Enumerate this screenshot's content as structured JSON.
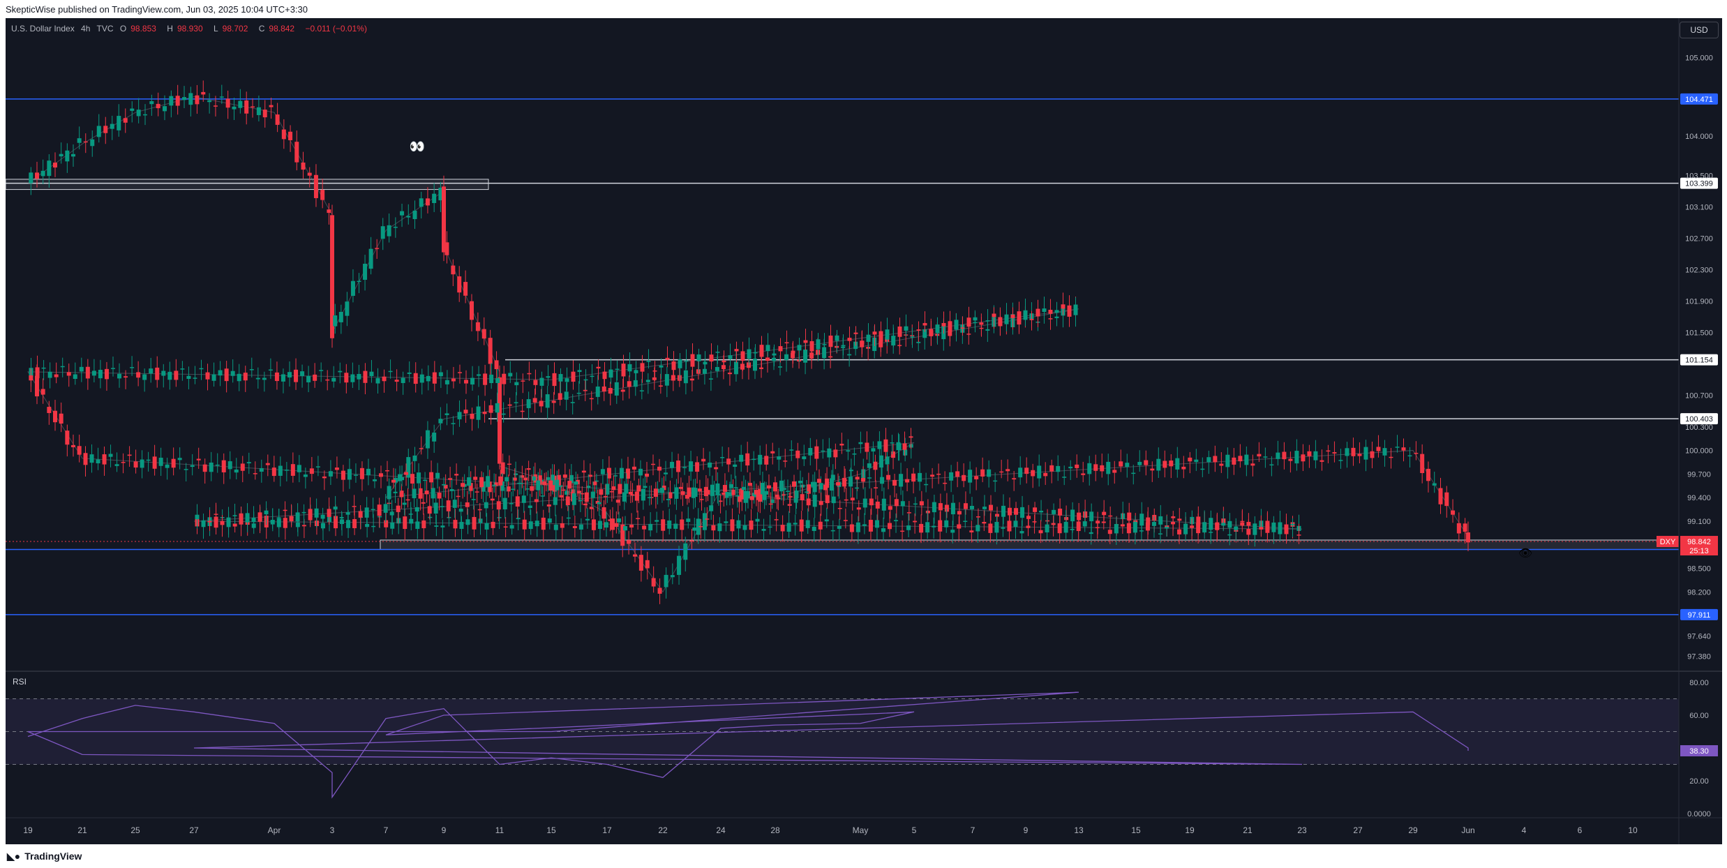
{
  "header": {
    "publisher_text": "SkepticWise published on TradingView.com, Jun 03, 2025 10:04 UTC+3:30"
  },
  "symbol_bar": {
    "name": "U.S. Dollar Index",
    "interval": "4h",
    "exchange": "TVC",
    "open_label": "O",
    "open": "98.853",
    "high_label": "H",
    "high": "98.930",
    "low_label": "L",
    "low": "98.702",
    "close_label": "C",
    "close": "98.842",
    "change": "−0.011 (−0.01%)"
  },
  "currency": "USD",
  "footer": {
    "brand": "TradingView"
  },
  "colors": {
    "background": "#131722",
    "up": "#089981",
    "down": "#f23645",
    "level_blue": "#2962ff",
    "rsi_line": "#7e57c2",
    "zone_border": "#d1d4dc"
  },
  "chart_data": {
    "type": "candlestick",
    "symbol": "DXY",
    "interval": "4h",
    "price_axis": {
      "ylim": [
        97.2,
        105.5
      ],
      "ticks": [
        "105.000",
        "104.000",
        "103.500",
        "103.100",
        "102.700",
        "102.300",
        "101.900",
        "101.500",
        "100.700",
        "100.300",
        "100.000",
        "99.700",
        "99.400",
        "99.100",
        "98.500",
        "98.200",
        "97.640",
        "97.380"
      ]
    },
    "x_axis": {
      "ticks": [
        "19",
        "21",
        "25",
        "27",
        "Apr",
        "3",
        "7",
        "9",
        "11",
        "15",
        "17",
        "22",
        "24",
        "28",
        "May",
        "5",
        "7",
        "9",
        "13",
        "15",
        "19",
        "21",
        "23",
        "27",
        "29",
        "Jun",
        "4",
        "6",
        "10"
      ]
    },
    "path_points": [
      [
        "19",
        103.4
      ],
      [
        "21",
        103.9
      ],
      [
        "25",
        104.3
      ],
      [
        "27",
        104.5
      ],
      [
        "Apr",
        104.3
      ],
      [
        "3",
        103.0
      ],
      [
        "3",
        101.5
      ],
      [
        "7",
        102.8
      ],
      [
        "9",
        103.3
      ],
      [
        "9",
        102.6
      ],
      [
        "11",
        101.0
      ],
      [
        "11",
        99.8
      ],
      [
        "15",
        99.6
      ],
      [
        "17",
        99.2
      ],
      [
        "22",
        98.2
      ],
      [
        "24",
        99.5
      ],
      [
        "28",
        99.4
      ],
      [
        "May",
        99.7
      ],
      [
        "5",
        100.1
      ],
      [
        "7",
        99.4
      ],
      [
        "9",
        100.4
      ],
      [
        "13",
        101.8
      ],
      [
        "15",
        100.9
      ],
      [
        "19",
        101.0
      ],
      [
        "21",
        99.9
      ],
      [
        "23",
        99.0
      ],
      [
        "27",
        99.1
      ],
      [
        "29",
        100.0
      ],
      [
        "Jun",
        98.9
      ],
      [
        "Jun",
        98.84
      ]
    ],
    "horizontal_levels": [
      {
        "kind": "blue",
        "label": "104.471",
        "value": 104.471
      },
      {
        "kind": "white",
        "label": "103.399",
        "value": 103.399
      },
      {
        "kind": "white",
        "label": "101.154",
        "value": 101.154
      },
      {
        "kind": "white",
        "label": "100.403",
        "value": 100.403
      },
      {
        "kind": "blue",
        "label": "98.740",
        "value": 98.74
      },
      {
        "kind": "blue",
        "label": "97.911",
        "value": 97.911
      }
    ],
    "zones": [
      {
        "low": 103.32,
        "high": 103.45
      },
      {
        "low": 98.74,
        "high": 98.86
      }
    ],
    "last_price": {
      "symbol": "DXY",
      "value": "98.842",
      "countdown": "25:13"
    },
    "annotations": [
      "👀",
      "👁"
    ],
    "rsi": {
      "label": "RSI",
      "ylim": [
        0,
        80
      ],
      "ticks": [
        "80.00",
        "60.00",
        "40.00",
        "20.00",
        "0.0000"
      ],
      "band": [
        30,
        70
      ],
      "mid": 50,
      "current": "38.30",
      "path_points": [
        [
          "19",
          47
        ],
        [
          "21",
          58
        ],
        [
          "25",
          66
        ],
        [
          "27",
          62
        ],
        [
          "Apr",
          55
        ],
        [
          "3",
          25
        ],
        [
          "3",
          10
        ],
        [
          "7",
          58
        ],
        [
          "9",
          64
        ],
        [
          "11",
          30
        ],
        [
          "15",
          34
        ],
        [
          "17",
          30
        ],
        [
          "22",
          22
        ],
        [
          "24",
          52
        ],
        [
          "28",
          54
        ],
        [
          "May",
          55
        ],
        [
          "5",
          62
        ],
        [
          "7",
          48
        ],
        [
          "9",
          60
        ],
        [
          "13",
          74
        ],
        [
          "15",
          50
        ],
        [
          "19",
          50
        ],
        [
          "21",
          36
        ],
        [
          "23",
          30
        ],
        [
          "27",
          40
        ],
        [
          "29",
          62
        ],
        [
          "Jun",
          40
        ],
        [
          "Jun",
          38.3
        ]
      ]
    }
  }
}
